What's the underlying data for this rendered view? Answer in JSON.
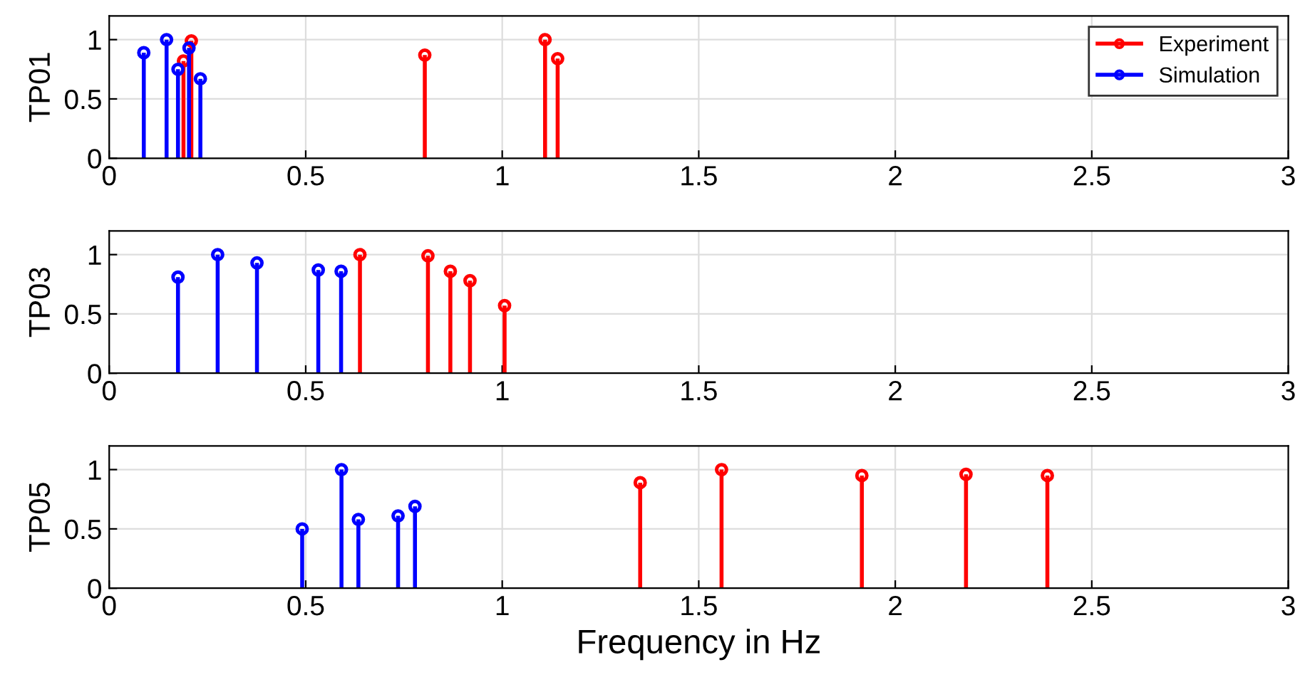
{
  "chart_data": [
    {
      "type": "lollipop",
      "ylabel": "TP01",
      "xlim": [
        0,
        3
      ],
      "xticks": [
        0,
        0.5,
        1,
        1.5,
        2,
        2.5,
        3
      ],
      "ylim": [
        0,
        1.2
      ],
      "yticks": [
        0,
        0.5,
        1
      ],
      "grid": true,
      "legend": "top right",
      "marker": "circle",
      "series": [
        {
          "name": "Experiment",
          "color": "#ff0000",
          "x": [
            0.189,
            0.209,
            0.803,
            1.109,
            1.141
          ],
          "values": [
            0.82,
            0.99,
            0.87,
            1.0,
            0.84
          ]
        },
        {
          "name": "Simulation",
          "color": "#0000ff",
          "x": [
            0.088,
            0.146,
            0.175,
            0.203,
            0.232
          ],
          "values": [
            0.89,
            1.0,
            0.75,
            0.93,
            0.67
          ]
        }
      ]
    },
    {
      "type": "lollipop",
      "ylabel": "TP03",
      "xlim": [
        0,
        3
      ],
      "xticks": [
        0,
        0.5,
        1,
        1.5,
        2,
        2.5,
        3
      ],
      "ylim": [
        0,
        1.2
      ],
      "yticks": [
        0,
        0.5,
        1
      ],
      "grid": true,
      "marker": "circle",
      "series": [
        {
          "color": "#0000ff",
          "x": [
            0.175,
            0.276,
            0.376,
            0.532,
            0.59
          ],
          "values": [
            0.81,
            1.0,
            0.93,
            0.87,
            0.86
          ]
        },
        {
          "color": "#ff0000",
          "x": [
            0.638,
            0.811,
            0.868,
            0.918,
            1.006
          ],
          "values": [
            1.0,
            0.99,
            0.86,
            0.78,
            0.57
          ]
        }
      ]
    },
    {
      "type": "lollipop",
      "ylabel": "TP05",
      "xlabel": "Frequency in Hz",
      "xlim": [
        0,
        3
      ],
      "xticks": [
        0,
        0.5,
        1,
        1.5,
        2,
        2.5,
        3
      ],
      "ylim": [
        0,
        1.2
      ],
      "yticks": [
        0,
        0.5,
        1
      ],
      "grid": true,
      "marker": "circle",
      "series": [
        {
          "color": "#0000ff",
          "x": [
            0.491,
            0.591,
            0.634,
            0.735,
            0.778
          ],
          "values": [
            0.5,
            1.0,
            0.58,
            0.61,
            0.69
          ]
        },
        {
          "color": "#ff0000",
          "x": [
            1.351,
            1.558,
            1.915,
            2.18,
            2.387
          ],
          "values": [
            0.89,
            1.0,
            0.95,
            0.96,
            0.95
          ]
        }
      ]
    }
  ]
}
